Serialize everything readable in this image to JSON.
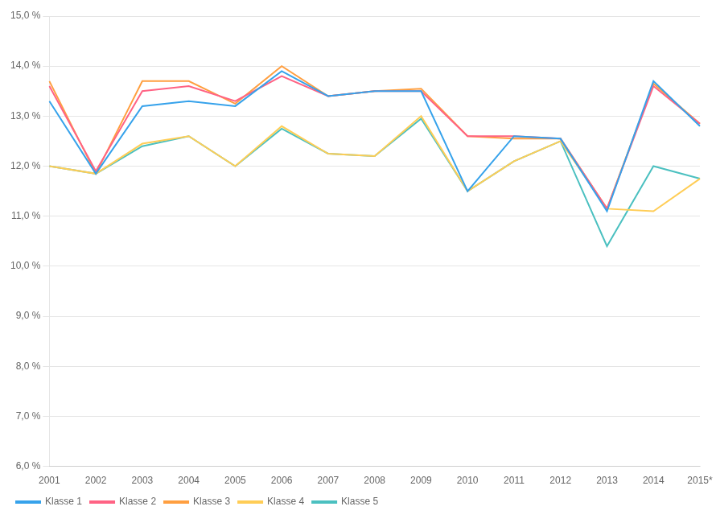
{
  "chart_data": {
    "type": "line",
    "categories": [
      "2001",
      "2002",
      "2003",
      "2004",
      "2005",
      "2006",
      "2007",
      "2008",
      "2009",
      "2010",
      "2011",
      "2012",
      "2013",
      "2014",
      "2015*"
    ],
    "series": [
      {
        "name": "Klasse 1",
        "values": [
          13.3,
          11.85,
          13.2,
          13.3,
          13.2,
          13.9,
          13.4,
          13.5,
          13.5,
          11.5,
          12.6,
          12.55,
          11.1,
          13.7,
          12.8
        ]
      },
      {
        "name": "Klasse 2",
        "values": [
          13.6,
          11.9,
          13.5,
          13.6,
          13.3,
          13.8,
          13.4,
          13.5,
          13.5,
          12.6,
          12.6,
          12.55,
          11.15,
          13.6,
          12.85
        ]
      },
      {
        "name": "Klasse 3",
        "values": [
          13.7,
          11.85,
          13.7,
          13.7,
          13.25,
          14.0,
          13.4,
          13.5,
          13.55,
          12.6,
          12.55,
          12.55,
          11.15,
          13.65,
          12.85
        ]
      },
      {
        "name": "Klasse 4",
        "values": [
          12.0,
          11.85,
          12.45,
          12.6,
          12.0,
          12.8,
          12.25,
          12.2,
          13.0,
          11.5,
          12.1,
          12.5,
          11.15,
          11.1,
          11.75
        ]
      },
      {
        "name": "Klasse 5",
        "values": [
          12.0,
          11.85,
          12.4,
          12.6,
          12.0,
          12.75,
          12.25,
          12.2,
          12.95,
          11.5,
          12.1,
          12.5,
          10.4,
          12.0,
          11.75
        ]
      }
    ],
    "ylim": [
      6.0,
      15.0
    ],
    "yticks": [
      {
        "value": 6.0,
        "label": "6,0 %"
      },
      {
        "value": 7.0,
        "label": "7,0 %"
      },
      {
        "value": 8.0,
        "label": "8,0 %"
      },
      {
        "value": 9.0,
        "label": "9,0 %"
      },
      {
        "value": 10.0,
        "label": "10,0 %"
      },
      {
        "value": 11.0,
        "label": "11,0 %"
      },
      {
        "value": 12.0,
        "label": "12,0 %"
      },
      {
        "value": 13.0,
        "label": "13,0 %"
      },
      {
        "value": 14.0,
        "label": "14,0 %"
      },
      {
        "value": 15.0,
        "label": "15,0 %"
      }
    ],
    "grid": "y",
    "legend": "lower left",
    "line_style": "solid",
    "marker": "none"
  }
}
